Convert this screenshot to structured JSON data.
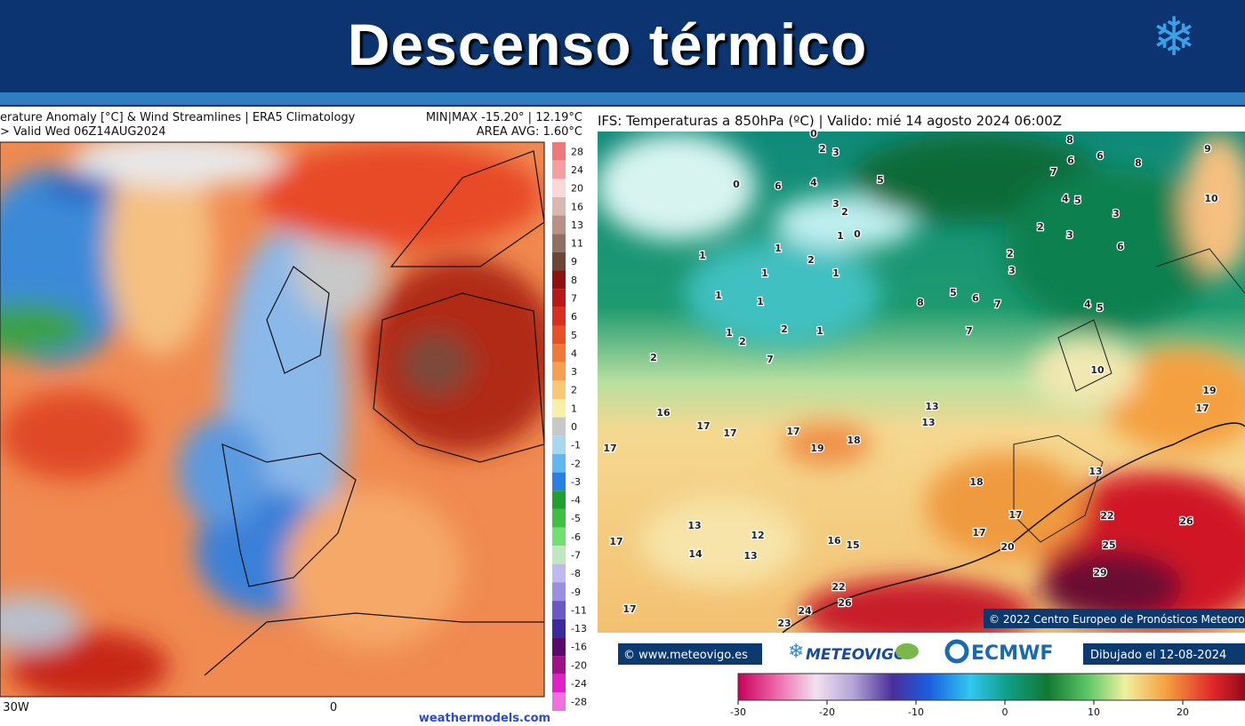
{
  "header": {
    "title": "Descenso térmico"
  },
  "left_map": {
    "title_line1": "erature Anomaly [°C] & Wind Streamlines | ERA5 Climatology",
    "title_line2": "> Valid Wed 06Z14AUG2024",
    "stats_line1": "MIN|MAX -15.20° | 12.19°C",
    "stats_line2": "AREA AVG: 1.60°C",
    "colorbar_labels": [
      28,
      24,
      20,
      16,
      13,
      11,
      9,
      8,
      7,
      6,
      5,
      4,
      3,
      2,
      1,
      0,
      -1,
      -2,
      -3,
      -4,
      -5,
      -6,
      -7,
      -8,
      -9,
      -11,
      -13,
      -16,
      -20,
      -24,
      -28
    ],
    "x_labels": [
      "30W",
      "0"
    ],
    "credit": "weathermodels.com"
  },
  "right_map": {
    "title": "IFS: Temperaturas a 850hPa  (ºC) | Valido: mié 14 agosto 2024 06:00Z",
    "copyright": "© 2022 Centro Europeo de Pronósticos Meteorolo",
    "contour_labels": [
      0,
      2,
      3,
      5,
      4,
      6,
      0,
      1,
      3,
      2,
      1,
      0,
      1,
      2,
      1,
      1,
      1,
      1,
      2,
      1,
      1,
      2,
      7,
      2,
      8,
      5,
      6,
      7,
      16,
      17,
      17,
      17,
      19,
      18,
      13,
      13,
      17,
      18,
      13,
      12,
      14,
      13,
      16,
      15,
      17,
      20,
      17,
      22,
      26,
      24,
      23,
      17,
      17,
      13,
      25,
      29,
      26,
      22,
      19,
      17,
      10,
      8,
      6,
      7,
      6,
      8,
      9,
      10,
      4,
      5,
      3,
      2,
      3,
      6,
      2,
      3,
      4,
      5,
      7
    ],
    "footer": {
      "website": "© www.meteovigo.es",
      "brand": "METEOVIGO",
      "ecmwf": "ECMWF",
      "drawn": "Dibujado el 12-08-2024"
    },
    "colorbar_ticks": [
      -30,
      -20,
      -10,
      0,
      10,
      20
    ]
  }
}
